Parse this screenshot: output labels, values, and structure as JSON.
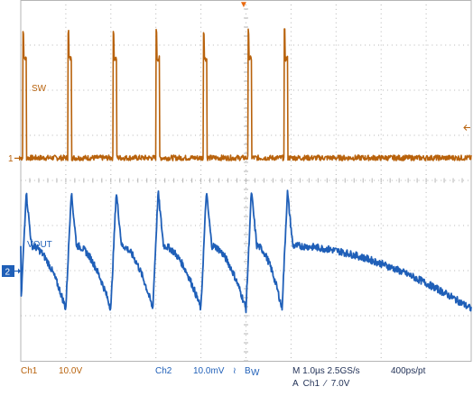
{
  "chart_data": {
    "type": "line",
    "title": "",
    "xlabel": "",
    "ylabel": "",
    "grid": true,
    "grid_divisions": {
      "horizontal": 10,
      "vertical": 8
    },
    "time_per_div_us": 1.0,
    "series": [
      {
        "name": "SW",
        "channel_marker": "1",
        "color": "#b8620c",
        "unit": "V",
        "volts_per_div": 10.0,
        "ground_div_from_top": 3.5,
        "off_level_v": 0,
        "on_level_v": 22,
        "spike_v": 28,
        "pulse_rise_times_us": [
          0.05,
          1.05,
          2.05,
          3.0,
          4.05,
          5.05,
          5.85
        ],
        "pulse_width_us": 0.08,
        "last_pulse_clipped": true
      },
      {
        "name": "VOUT",
        "channel_marker": "2",
        "color": "#1f5fb8",
        "unit": "mV",
        "volts_per_div": 10.0,
        "ground_div_from_top": 6.05,
        "peak_times_us": [
          0.12,
          1.12,
          2.12,
          3.05,
          4.12,
          5.12,
          5.92
        ],
        "peak_mv": 18,
        "plateau_mv": 6,
        "valley_mv": -8
      }
    ]
  },
  "trigger_marker": "▼",
  "status_bar": {
    "ch1_label": "Ch1",
    "ch1_scale": "10.0V",
    "ch2_label": "Ch2",
    "ch2_scale": "10.0mV",
    "ch2_coupling": "≀",
    "bw_label": "B",
    "bw_sub": "W",
    "timebase": "M 1.0µs 2.5GS/s",
    "resolution": "400ps/pt",
    "trigger": "A  Ch1  ∕  7.0V"
  }
}
